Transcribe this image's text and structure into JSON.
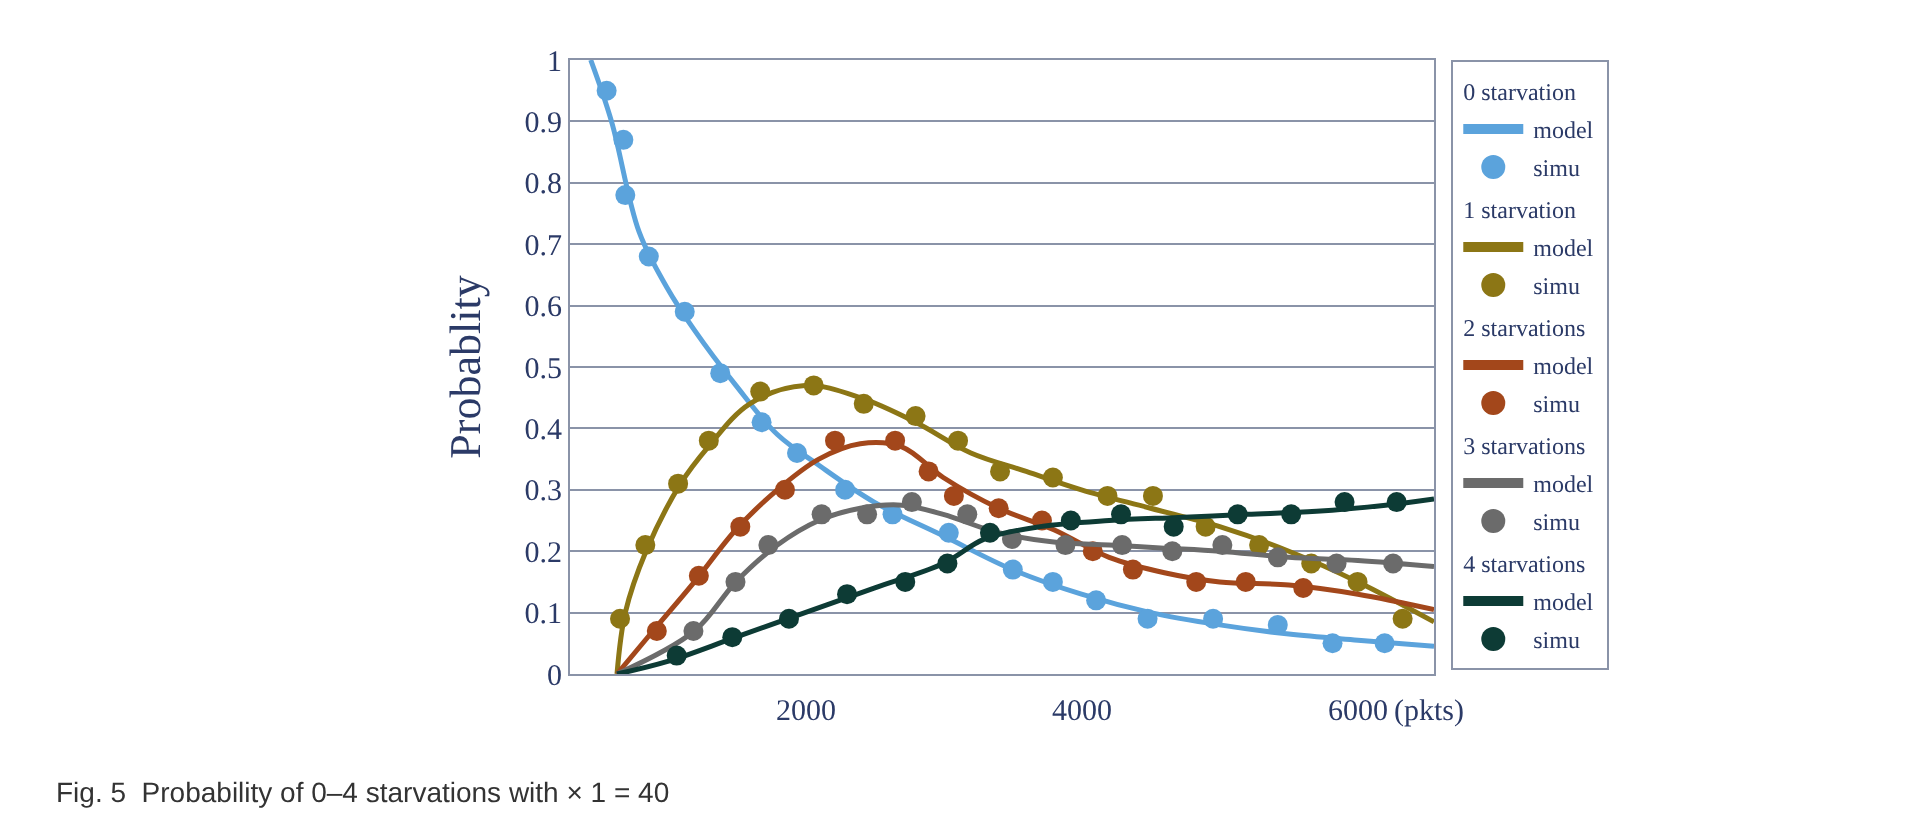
{
  "chart_data": {
    "type": "line",
    "ylabel": "Probablity",
    "annotations": [
      "Fig. 5  Probability of 0–4 starvations with × 1 = 40",
      "0 starvation",
      "1 starvation",
      "2 starvations",
      "3 starvations",
      "4 starvations"
    ],
    "xlim": [
      300,
      6550
    ],
    "xticks": [
      2000,
      4000,
      6000
    ],
    "xlabel": "(pkts)",
    "ylim": [
      0,
      1
    ],
    "yticks": [
      0,
      0.1,
      0.2,
      0.3,
      0.4,
      0.5,
      0.6,
      0.7,
      0.8,
      0.9,
      1
    ],
    "grid": "y",
    "legend": "right",
    "line_style": "solid",
    "series": [
      {
        "name": "model",
        "color": "#5ba3dc",
        "x": [
          450,
          600,
          800,
          1000,
          1200,
          1500,
          1800,
          2100,
          2500,
          3000,
          3500,
          4000,
          4500,
          5000,
          5500,
          6000,
          6550
        ],
        "values": [
          1.0,
          0.9,
          0.72,
          0.63,
          0.56,
          0.47,
          0.39,
          0.34,
          0.28,
          0.225,
          0.17,
          0.13,
          0.1,
          0.08,
          0.065,
          0.055,
          0.045
        ]
      },
      {
        "name": "simu",
        "type": "scatter",
        "marker": "circle",
        "color": "#5ba3dc",
        "x": [
          565,
          686,
          700,
          870,
          1130,
          1387,
          1686,
          1942,
          2290,
          2633,
          3040,
          3503,
          3793,
          4106,
          4478,
          4952,
          5420,
          5816,
          6193
        ],
        "values": [
          0.95,
          0.87,
          0.78,
          0.68,
          0.59,
          0.49,
          0.41,
          0.36,
          0.3,
          0.26,
          0.23,
          0.17,
          0.15,
          0.12,
          0.09,
          0.09,
          0.08,
          0.05,
          0.05
        ]
      },
      {
        "name": "model",
        "color": "#8c7615",
        "x": [
          640,
          700,
          850,
          1100,
          1300,
          1600,
          2000,
          2400,
          2800,
          3200,
          3600,
          4000,
          4500,
          5000,
          5500,
          6000,
          6550
        ],
        "values": [
          0,
          0.1,
          0.2,
          0.31,
          0.37,
          0.44,
          0.47,
          0.45,
          0.41,
          0.36,
          0.33,
          0.3,
          0.27,
          0.24,
          0.2,
          0.15,
          0.085
        ]
      },
      {
        "name": "simu",
        "type": "scatter",
        "marker": "circle",
        "color": "#8c7615",
        "x": [
          662,
          845,
          1082,
          1304,
          1676,
          2063,
          2425,
          2800,
          3107,
          3411,
          3793,
          4188,
          4517,
          4898,
          5285,
          5662,
          5997,
          6323
        ],
        "values": [
          0.09,
          0.21,
          0.31,
          0.38,
          0.46,
          0.47,
          0.44,
          0.42,
          0.38,
          0.33,
          0.32,
          0.29,
          0.29,
          0.24,
          0.21,
          0.18,
          0.15,
          0.09
        ]
      },
      {
        "name": "model",
        "color": "#a3471b",
        "x": [
          640,
          900,
          1200,
          1500,
          1800,
          2100,
          2400,
          2700,
          3000,
          3400,
          3800,
          4200,
          4600,
          5000,
          5500,
          6000,
          6550
        ],
        "values": [
          0,
          0.07,
          0.15,
          0.235,
          0.3,
          0.35,
          0.375,
          0.37,
          0.32,
          0.27,
          0.235,
          0.19,
          0.165,
          0.15,
          0.145,
          0.13,
          0.105
        ]
      },
      {
        "name": "simu",
        "type": "scatter",
        "marker": "circle",
        "color": "#a3471b",
        "x": [
          928,
          1232,
          1532,
          1855,
          2217,
          2652,
          2894,
          3077,
          3401,
          3714,
          4082,
          4372,
          4830,
          5188,
          5604
        ],
        "values": [
          0.07,
          0.16,
          0.24,
          0.3,
          0.38,
          0.38,
          0.33,
          0.29,
          0.27,
          0.25,
          0.2,
          0.17,
          0.15,
          0.15,
          0.14
        ]
      },
      {
        "name": "model",
        "color": "#6b6b6b",
        "x": [
          640,
          1200,
          1500,
          1800,
          2100,
          2400,
          2700,
          3000,
          3400,
          3800,
          4200,
          4600,
          5000,
          5500,
          6000,
          6550
        ],
        "values": [
          0,
          0.07,
          0.15,
          0.21,
          0.25,
          0.27,
          0.275,
          0.26,
          0.23,
          0.215,
          0.21,
          0.205,
          0.2,
          0.19,
          0.185,
          0.175
        ]
      },
      {
        "name": "simu",
        "type": "scatter",
        "marker": "circle",
        "color": "#6b6b6b",
        "x": [
          1193,
          1497,
          1735,
          2120,
          2449,
          2773,
          3174,
          3497,
          3884,
          4294,
          4657,
          5019,
          5420,
          5845,
          6254
        ],
        "values": [
          0.07,
          0.15,
          0.21,
          0.26,
          0.26,
          0.28,
          0.26,
          0.22,
          0.21,
          0.21,
          0.2,
          0.21,
          0.19,
          0.18,
          0.18
        ]
      },
      {
        "name": "model",
        "color": "#0d3b35",
        "x": [
          640,
          1000,
          1500,
          2000,
          2500,
          3000,
          3300,
          3700,
          4200,
          4700,
          5200,
          5700,
          6200,
          6550
        ],
        "values": [
          0,
          0.02,
          0.06,
          0.1,
          0.14,
          0.18,
          0.22,
          0.24,
          0.25,
          0.255,
          0.26,
          0.265,
          0.275,
          0.285
        ]
      },
      {
        "name": "simu",
        "type": "scatter",
        "marker": "circle",
        "color": "#0d3b35",
        "x": [
          1072,
          1474,
          1884,
          2304,
          2725,
          3030,
          3338,
          3923,
          4286,
          4667,
          5130,
          5517,
          5903,
          6280
        ],
        "values": [
          0.03,
          0.06,
          0.09,
          0.13,
          0.15,
          0.18,
          0.23,
          0.25,
          0.26,
          0.24,
          0.26,
          0.26,
          0.28,
          0.28
        ]
      }
    ]
  }
}
